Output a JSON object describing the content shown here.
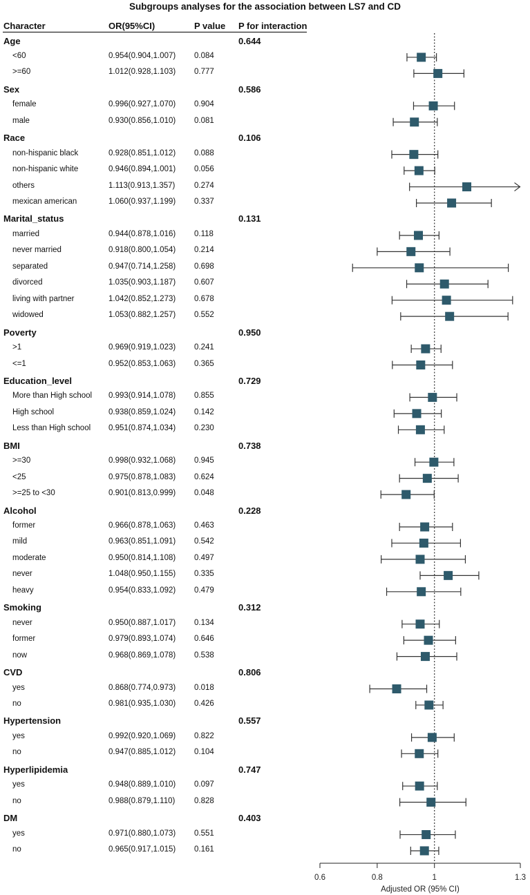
{
  "chart_data": {
    "type": "forest",
    "title": "Subgroups analyses for the association between LS7 and CD",
    "columns": [
      "Character",
      "OR(95%CI)",
      "P value",
      "P for interaction"
    ],
    "xlabel": "Adjusted OR (95% CI)",
    "xlim": [
      0.6,
      1.3
    ],
    "xticks": [
      "0.6",
      "0.8",
      "1",
      "1.3"
    ],
    "reference_line": 1,
    "groups": [
      {
        "name": "Age",
        "p_interaction": "0.644",
        "rows": [
          {
            "label": "<60",
            "or_text": "0.954(0.904,1.007)",
            "p": "0.084",
            "or": 0.954,
            "lo": 0.904,
            "hi": 1.007
          },
          {
            "label": ">=60",
            "or_text": "1.012(0.928,1.103)",
            "p": "0.777",
            "or": 1.012,
            "lo": 0.928,
            "hi": 1.103
          }
        ]
      },
      {
        "name": "Sex",
        "p_interaction": "0.586",
        "rows": [
          {
            "label": "female",
            "or_text": "0.996(0.927,1.070)",
            "p": "0.904",
            "or": 0.996,
            "lo": 0.927,
            "hi": 1.07
          },
          {
            "label": "male",
            "or_text": "0.930(0.856,1.010)",
            "p": "0.081",
            "or": 0.93,
            "lo": 0.856,
            "hi": 1.01
          }
        ]
      },
      {
        "name": "Race",
        "p_interaction": "0.106",
        "rows": [
          {
            "label": "non-hispanic black",
            "or_text": "0.928(0.851,1.012)",
            "p": "0.088",
            "or": 0.928,
            "lo": 0.851,
            "hi": 1.012
          },
          {
            "label": "non-hispanic white",
            "or_text": "0.946(0.894,1.001)",
            "p": "0.056",
            "or": 0.946,
            "lo": 0.894,
            "hi": 1.001
          },
          {
            "label": "others",
            "or_text": "1.113(0.913,1.357)",
            "p": "0.274",
            "or": 1.113,
            "lo": 0.913,
            "hi": 1.357
          },
          {
            "label": "mexican american",
            "or_text": "1.060(0.937,1.199)",
            "p": "0.337",
            "or": 1.06,
            "lo": 0.937,
            "hi": 1.199
          }
        ]
      },
      {
        "name": "Marital_status",
        "p_interaction": "0.131",
        "rows": [
          {
            "label": "married",
            "or_text": "0.944(0.878,1.016)",
            "p": "0.118",
            "or": 0.944,
            "lo": 0.878,
            "hi": 1.016
          },
          {
            "label": "never married",
            "or_text": "0.918(0.800,1.054)",
            "p": "0.214",
            "or": 0.918,
            "lo": 0.8,
            "hi": 1.054
          },
          {
            "label": "separated",
            "or_text": "0.947(0.714,1.258)",
            "p": "0.698",
            "or": 0.947,
            "lo": 0.714,
            "hi": 1.258
          },
          {
            "label": "divorced",
            "or_text": "1.035(0.903,1.187)",
            "p": "0.607",
            "or": 1.035,
            "lo": 0.903,
            "hi": 1.187
          },
          {
            "label": "living with partner",
            "or_text": "1.042(0.852,1.273)",
            "p": "0.678",
            "or": 1.042,
            "lo": 0.852,
            "hi": 1.273
          },
          {
            "label": "widowed",
            "or_text": "1.053(0.882,1.257)",
            "p": "0.552",
            "or": 1.053,
            "lo": 0.882,
            "hi": 1.257
          }
        ]
      },
      {
        "name": "Poverty",
        "p_interaction": "0.950",
        "rows": [
          {
            "label": ">1",
            "or_text": "0.969(0.919,1.023)",
            "p": "0.241",
            "or": 0.969,
            "lo": 0.919,
            "hi": 1.023
          },
          {
            "label": "<=1",
            "or_text": "0.952(0.853,1.063)",
            "p": "0.365",
            "or": 0.952,
            "lo": 0.853,
            "hi": 1.063
          }
        ]
      },
      {
        "name": "Education_level",
        "p_interaction": "0.729",
        "rows": [
          {
            "label": "More than High school",
            "or_text": "0.993(0.914,1.078)",
            "p": "0.855",
            "or": 0.993,
            "lo": 0.914,
            "hi": 1.078
          },
          {
            "label": "High school",
            "or_text": "0.938(0.859,1.024)",
            "p": "0.142",
            "or": 0.938,
            "lo": 0.859,
            "hi": 1.024
          },
          {
            "label": "Less than High school",
            "or_text": "0.951(0.874,1.034)",
            "p": "0.230",
            "or": 0.951,
            "lo": 0.874,
            "hi": 1.034
          }
        ]
      },
      {
        "name": "BMI",
        "p_interaction": "0.738",
        "rows": [
          {
            "label": ">=30",
            "or_text": "0.998(0.932,1.068)",
            "p": "0.945",
            "or": 0.998,
            "lo": 0.932,
            "hi": 1.068
          },
          {
            "label": "<25",
            "or_text": "0.975(0.878,1.083)",
            "p": "0.624",
            "or": 0.975,
            "lo": 0.878,
            "hi": 1.083
          },
          {
            "label": ">=25 to <30",
            "or_text": "0.901(0.813,0.999)",
            "p": "0.048",
            "or": 0.901,
            "lo": 0.813,
            "hi": 0.999
          }
        ]
      },
      {
        "name": "Alcohol",
        "p_interaction": "0.228",
        "rows": [
          {
            "label": "former",
            "or_text": "0.966(0.878,1.063)",
            "p": "0.463",
            "or": 0.966,
            "lo": 0.878,
            "hi": 1.063
          },
          {
            "label": "mild",
            "or_text": "0.963(0.851,1.091)",
            "p": "0.542",
            "or": 0.963,
            "lo": 0.851,
            "hi": 1.091
          },
          {
            "label": "moderate",
            "or_text": "0.950(0.814,1.108)",
            "p": "0.497",
            "or": 0.95,
            "lo": 0.814,
            "hi": 1.108
          },
          {
            "label": "never",
            "or_text": "1.048(0.950,1.155)",
            "p": "0.335",
            "or": 1.048,
            "lo": 0.95,
            "hi": 1.155
          },
          {
            "label": "heavy",
            "or_text": "0.954(0.833,1.092)",
            "p": "0.479",
            "or": 0.954,
            "lo": 0.833,
            "hi": 1.092
          }
        ]
      },
      {
        "name": "Smoking",
        "p_interaction": "0.312",
        "rows": [
          {
            "label": "never",
            "or_text": "0.950(0.887,1.017)",
            "p": "0.134",
            "or": 0.95,
            "lo": 0.887,
            "hi": 1.017
          },
          {
            "label": "former",
            "or_text": "0.979(0.893,1.074)",
            "p": "0.646",
            "or": 0.979,
            "lo": 0.893,
            "hi": 1.074
          },
          {
            "label": "now",
            "or_text": "0.968(0.869,1.078)",
            "p": "0.538",
            "or": 0.968,
            "lo": 0.869,
            "hi": 1.078
          }
        ]
      },
      {
        "name": "CVD",
        "p_interaction": "0.806",
        "rows": [
          {
            "label": "yes",
            "or_text": "0.868(0.774,0.973)",
            "p": "0.018",
            "or": 0.868,
            "lo": 0.774,
            "hi": 0.973
          },
          {
            "label": "no",
            "or_text": "0.981(0.935,1.030)",
            "p": "0.426",
            "or": 0.981,
            "lo": 0.935,
            "hi": 1.03
          }
        ]
      },
      {
        "name": "Hypertension",
        "p_interaction": "0.557",
        "rows": [
          {
            "label": "yes",
            "or_text": "0.992(0.920,1.069)",
            "p": "0.822",
            "or": 0.992,
            "lo": 0.92,
            "hi": 1.069
          },
          {
            "label": "no",
            "or_text": "0.947(0.885,1.012)",
            "p": "0.104",
            "or": 0.947,
            "lo": 0.885,
            "hi": 1.012
          }
        ]
      },
      {
        "name": "Hyperlipidemia",
        "p_interaction": "0.747",
        "rows": [
          {
            "label": "yes",
            "or_text": "0.948(0.889,1.010)",
            "p": "0.097",
            "or": 0.948,
            "lo": 0.889,
            "hi": 1.01
          },
          {
            "label": "no",
            "or_text": "0.988(0.879,1.110)",
            "p": "0.828",
            "or": 0.988,
            "lo": 0.879,
            "hi": 1.11
          }
        ]
      },
      {
        "name": "DM",
        "p_interaction": "0.403",
        "rows": [
          {
            "label": "yes",
            "or_text": "0.971(0.880,1.073)",
            "p": "0.551",
            "or": 0.971,
            "lo": 0.88,
            "hi": 1.073
          },
          {
            "label": "no",
            "or_text": "0.965(0.917,1.015)",
            "p": "0.161",
            "or": 0.965,
            "lo": 0.917,
            "hi": 1.015
          }
        ]
      }
    ],
    "colors": {
      "marker": "#2e5a6b",
      "line": "#333333"
    }
  }
}
